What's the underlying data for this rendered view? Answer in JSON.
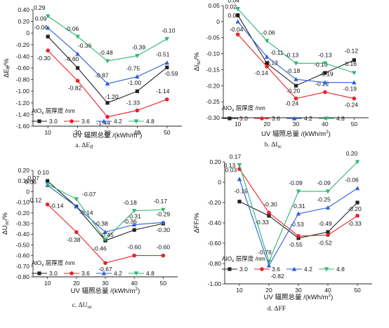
{
  "legend_title": "AlO",
  "legend_title_sub": "x",
  "legend_title_rest": " 层厚度 /nm",
  "legend_title_end": "",
  "chart_data": [
    {
      "type": "line",
      "ylabel_main": "ΔE",
      "ylabel_sub": "ff",
      "ylabel_unit": "/%",
      "xlabel_text": "UV 辐照总量 /(kWh/m",
      "xlabel_sup": "2",
      "xlabel_end": ")",
      "caption_text": "a. ΔE",
      "caption_sub": "ff",
      "x": [
        10,
        20,
        30,
        40,
        50
      ],
      "xlim": [
        5,
        55
      ],
      "ylim": [
        -1.6,
        0.4
      ],
      "yticks": [
        "0.40",
        "0.20",
        "0",
        "-0.20",
        "-0.40",
        "-0.60",
        "-0.80",
        "-1.00",
        "-1.20",
        "-1.40",
        "-1.60"
      ],
      "ytick_values": [
        0.4,
        0.2,
        0,
        -0.2,
        -0.4,
        -0.6,
        -0.8,
        -1.0,
        -1.2,
        -1.4,
        -1.6
      ],
      "xticks": [
        "10",
        "20",
        "30",
        "40",
        "50"
      ],
      "series": [
        {
          "name": "3.0",
          "color": "#222222",
          "marker": "square",
          "values": [
            -0.06,
            -0.6,
            -1.2,
            -1.0,
            -0.59
          ],
          "labels": [
            "-0.06",
            "-0.60",
            "-1.20",
            "-1.00",
            "-0.59"
          ]
        },
        {
          "name": "3.6",
          "color": "#e8232a",
          "marker": "circle",
          "values": [
            -0.3,
            -0.82,
            -1.44,
            -1.33,
            -1.14
          ],
          "labels": [
            "-0.30",
            "-0.82",
            "-1.44",
            "-1.33",
            "-1.14"
          ]
        },
        {
          "name": "4.2",
          "color": "#2b5fd9",
          "marker": "triangle",
          "values": [
            0.09,
            -0.36,
            -0.87,
            -0.75,
            -0.51
          ],
          "labels": [
            "0.09",
            "-0.36",
            "-0.87",
            "-0.75",
            "-0.51"
          ]
        },
        {
          "name": "4.8",
          "color": "#2fb573",
          "marker": "tridown",
          "values": [
            0.29,
            -0.06,
            -0.48,
            -0.39,
            -0.1
          ],
          "labels": [
            "0.29",
            "-0.06",
            "-0.48",
            "-0.39",
            "-0.10"
          ]
        }
      ]
    },
    {
      "type": "line",
      "ylabel_main": "ΔI",
      "ylabel_sub": "sc",
      "ylabel_unit": "/%",
      "xlabel_text": "UV 辐照总量 /(kWh/m",
      "xlabel_sup": "2",
      "xlabel_end": ")",
      "caption_text": "b. ΔI",
      "caption_sub": "sc",
      "x": [
        10,
        20,
        30,
        40,
        50
      ],
      "xlim": [
        5,
        55
      ],
      "ylim": [
        -0.3,
        0.05
      ],
      "yticks": [
        "0.05",
        "0",
        "-0.05",
        "-0.10",
        "-0.15",
        "-0.20",
        "-0.25",
        "-0.30"
      ],
      "ytick_values": [
        0.05,
        0,
        -0.05,
        -0.1,
        -0.15,
        -0.2,
        -0.25,
        -0.3
      ],
      "xticks": [
        "10",
        "20",
        "30",
        "40",
        "50"
      ],
      "series": [
        {
          "name": "3.0",
          "color": "#222222",
          "marker": "square",
          "values": [
            0.02,
            -0.13,
            -0.2,
            -0.16,
            -0.12
          ],
          "labels": [
            "0.02",
            "-0.13",
            "-0.20",
            "-0.16",
            "-0.12"
          ]
        },
        {
          "name": "3.6",
          "color": "#e8232a",
          "marker": "circle",
          "values": [
            -0.04,
            -0.14,
            -0.24,
            -0.22,
            -0.24
          ],
          "labels": [
            "-0.04",
            "-0.14",
            "-0.24",
            "-0.22",
            "-0.24"
          ]
        },
        {
          "name": "4.2",
          "color": "#2b5fd9",
          "marker": "triangle",
          "values": [
            0.0,
            -0.11,
            -0.18,
            -0.19,
            -0.19
          ],
          "labels": [
            "0.00",
            "-0.11",
            "-0.18",
            "-0.19",
            "-0.19"
          ]
        },
        {
          "name": "4.8",
          "color": "#2fb573",
          "marker": "tridown",
          "values": [
            0.04,
            -0.06,
            -0.13,
            -0.13,
            -0.16
          ],
          "labels": [
            "0.04",
            "-0.06",
            "-0.13",
            "-0.13",
            "-0.16"
          ]
        }
      ]
    },
    {
      "type": "line",
      "ylabel_main": "ΔU",
      "ylabel_sub": "oc",
      "ylabel_unit": "/%",
      "xlabel_text": "UV 辐照总量 /(kWh/m",
      "xlabel_sup": "2",
      "xlabel_end": ")",
      "caption_text": "c. ΔU",
      "caption_sub": "oc",
      "x": [
        10,
        20,
        30,
        40,
        50
      ],
      "xlim": [
        5,
        55
      ],
      "ylim": [
        -0.8,
        0.2
      ],
      "yticks": [
        "0.20",
        "0.10",
        "0",
        "-0.10",
        "-0.20",
        "-0.30",
        "-0.40",
        "-0.50",
        "-0.60",
        "-0.70",
        "-0.80"
      ],
      "ytick_values": [
        0.2,
        0.1,
        0,
        -0.1,
        -0.2,
        -0.3,
        -0.4,
        -0.5,
        -0.6,
        -0.7,
        -0.8
      ],
      "xticks": [
        "10",
        "20",
        "30",
        "40",
        "50"
      ],
      "series": [
        {
          "name": "3.0",
          "color": "#222222",
          "marker": "square",
          "values": [
            0.1,
            -0.14,
            -0.46,
            -0.36,
            -0.3
          ],
          "labels": [
            "0.10",
            "-0.14",
            "-0.46",
            "-0.36",
            "-0.30"
          ]
        },
        {
          "name": "3.6",
          "color": "#e8232a",
          "marker": "circle",
          "values": [
            -0.12,
            -0.38,
            -0.67,
            -0.6,
            -0.6
          ],
          "labels": [
            "-0.12",
            "-0.38",
            "-0.67",
            "-0.60",
            "-0.60"
          ]
        },
        {
          "name": "4.2",
          "color": "#2b5fd9",
          "marker": "triangle",
          "values": [
            0.06,
            -0.14,
            -0.38,
            -0.31,
            -0.29
          ],
          "labels": [
            "0.06",
            "-0.14",
            "-0.38",
            "-0.31",
            "-0.29"
          ]
        },
        {
          "name": "4.8",
          "color": "#2fb573",
          "marker": "tridown",
          "values": [
            0.07,
            -0.07,
            -0.45,
            -0.18,
            -0.17
          ],
          "labels": [
            "0.07",
            "-0.07",
            "-0.45",
            "-0.18",
            "-0.17"
          ]
        }
      ]
    },
    {
      "type": "line",
      "ylabel_main": "ΔFF",
      "ylabel_sub": "",
      "ylabel_unit": "/%",
      "xlabel_text": "UV 辐照总量 /(kWh/m",
      "xlabel_sup": "2",
      "xlabel_end": ")",
      "caption_text": "d. ΔFF",
      "caption_sub": "",
      "x": [
        10,
        20,
        30,
        40,
        50
      ],
      "xlim": [
        5,
        55
      ],
      "ylim": [
        -1.0,
        0.2
      ],
      "yticks": [
        "0.20",
        "0",
        "-0.20",
        "-0.40",
        "-0.60",
        "-0.80",
        "-1.00"
      ],
      "ytick_values": [
        0.2,
        0,
        -0.2,
        -0.4,
        -0.6,
        -0.8,
        -1.0
      ],
      "xticks": [
        "10",
        "20",
        "30",
        "40",
        "50"
      ],
      "series": [
        {
          "name": "3.0",
          "color": "#222222",
          "marker": "square",
          "values": [
            -0.19,
            -0.33,
            -0.55,
            -0.49,
            -0.2
          ],
          "labels": [
            "-0.19",
            "-0.33",
            "-0.55",
            "-0.49",
            "-0.20"
          ]
        },
        {
          "name": "3.6",
          "color": "#e8232a",
          "marker": "circle",
          "values": [
            0.13,
            -0.3,
            -0.53,
            -0.52,
            -0.33
          ],
          "labels": [
            "0.13",
            "-0.30",
            "-0.53",
            "-0.52",
            "-0.33"
          ]
        },
        {
          "name": "4.2",
          "color": "#2b5fd9",
          "marker": "triangle",
          "values": [
            0.03,
            -0.82,
            -0.31,
            -0.25,
            -0.06
          ],
          "labels": [
            "0.03",
            "-0.82",
            "-0.31",
            "-0.25",
            "-0.06"
          ]
        },
        {
          "name": "4.8",
          "color": "#2fb573",
          "marker": "tridown",
          "values": [
            0.17,
            -0.78,
            -0.09,
            -0.09,
            0.2
          ],
          "labels": [
            "0.17",
            "-0.78",
            "-0.09",
            "-0.09",
            "0.20"
          ]
        }
      ]
    }
  ]
}
